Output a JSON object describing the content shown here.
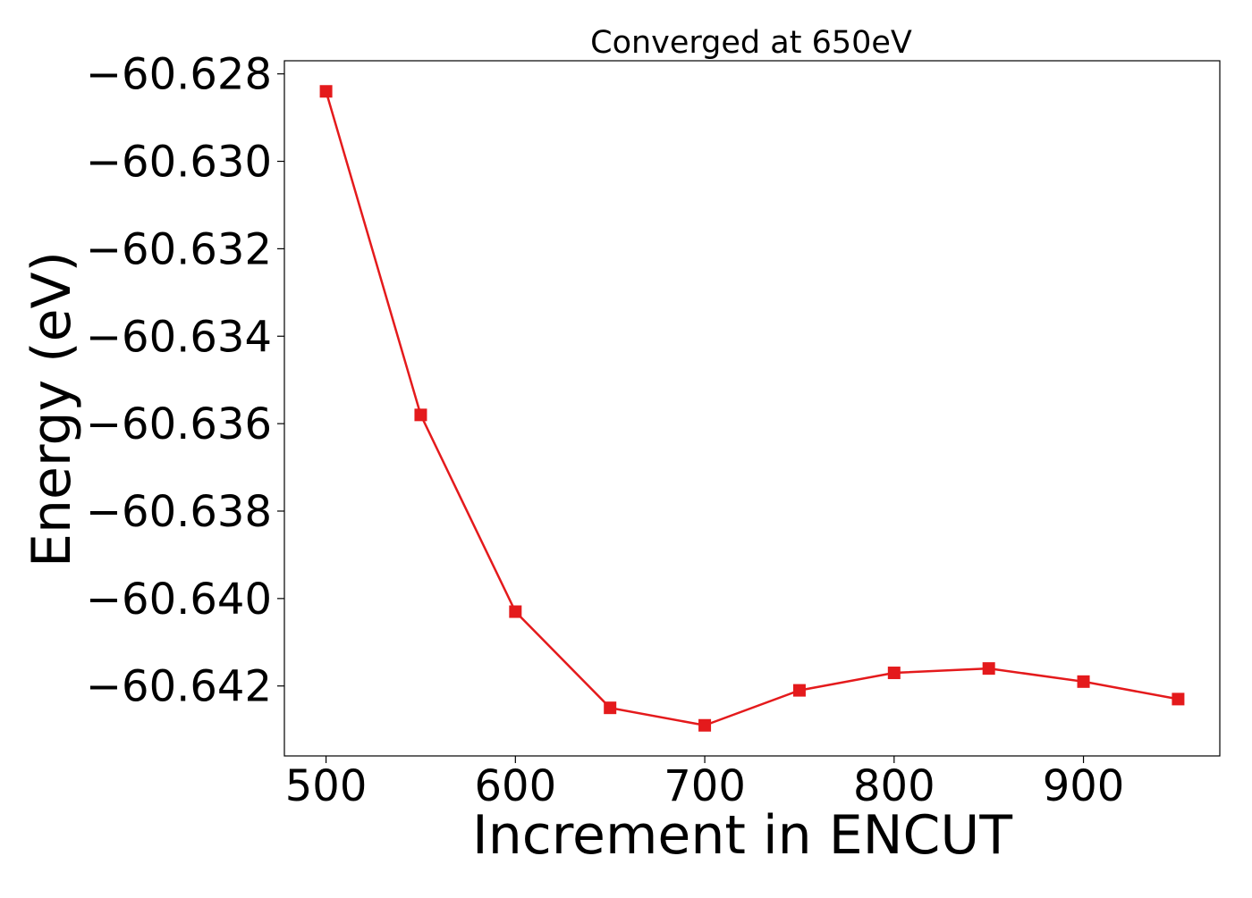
{
  "chart_data": {
    "type": "line",
    "title": "Converged at 650eV",
    "xlabel": "Increment in ENCUT",
    "ylabel": "Energy (eV)",
    "xlim": [
      478,
      972
    ],
    "ylim": [
      -60.6436,
      -60.6277
    ],
    "xticks": [
      500,
      600,
      700,
      800,
      900
    ],
    "xtick_labels": [
      "500",
      "600",
      "700",
      "800",
      "900"
    ],
    "yticks": [
      -60.628,
      -60.63,
      -60.632,
      -60.634,
      -60.636,
      -60.638,
      -60.64,
      -60.642
    ],
    "ytick_labels": [
      "−60.628",
      "−60.630",
      "−60.632",
      "−60.634",
      "−60.636",
      "−60.638",
      "−60.640",
      "−60.642"
    ],
    "grid": false,
    "legend": "none",
    "series": [
      {
        "color": "#e41a1c",
        "marker": "square",
        "x": [
          500,
          550,
          600,
          650,
          700,
          750,
          800,
          850,
          900,
          950
        ],
        "y": [
          -60.6284,
          -60.6358,
          -60.6403,
          -60.6425,
          -60.6429,
          -60.6421,
          -60.6417,
          -60.6416,
          -60.6419,
          -60.6423
        ]
      }
    ]
  }
}
